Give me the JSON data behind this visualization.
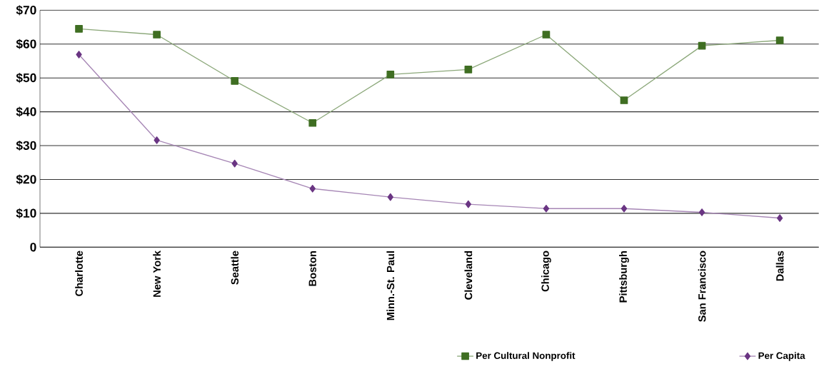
{
  "chart_data": {
    "type": "line",
    "categories": [
      "Charlotte",
      "New York",
      "Seattle",
      "Boston",
      "Minn.-St. Paul",
      "Cleveland",
      "Chicago",
      "Pittsburgh",
      "San Francisco",
      "Dallas"
    ],
    "series": [
      {
        "name": "Per Cultural Nonprofit",
        "color": "#3f6e22",
        "marker": "square",
        "values": [
          64.5,
          62.8,
          49.1,
          36.7,
          51.0,
          52.5,
          62.8,
          43.4,
          59.5,
          61.1
        ]
      },
      {
        "name": "Per Capita",
        "color": "#6a3583",
        "marker": "diamond",
        "values": [
          56.9,
          31.6,
          24.7,
          17.3,
          14.8,
          12.7,
          11.4,
          11.4,
          10.3,
          8.6
        ]
      }
    ],
    "ylim": [
      0,
      70
    ],
    "yticks": [
      {
        "value": 0,
        "label": "0"
      },
      {
        "value": 10,
        "label": "$10"
      },
      {
        "value": 20,
        "label": "$20"
      },
      {
        "value": 30,
        "label": "$30"
      },
      {
        "value": 40,
        "label": "$40"
      },
      {
        "value": 50,
        "label": "$50"
      },
      {
        "value": 60,
        "label": "$60"
      },
      {
        "value": 70,
        "label": "$70"
      }
    ],
    "grid": "y",
    "legend": "bottom right",
    "line_style": "solid"
  }
}
